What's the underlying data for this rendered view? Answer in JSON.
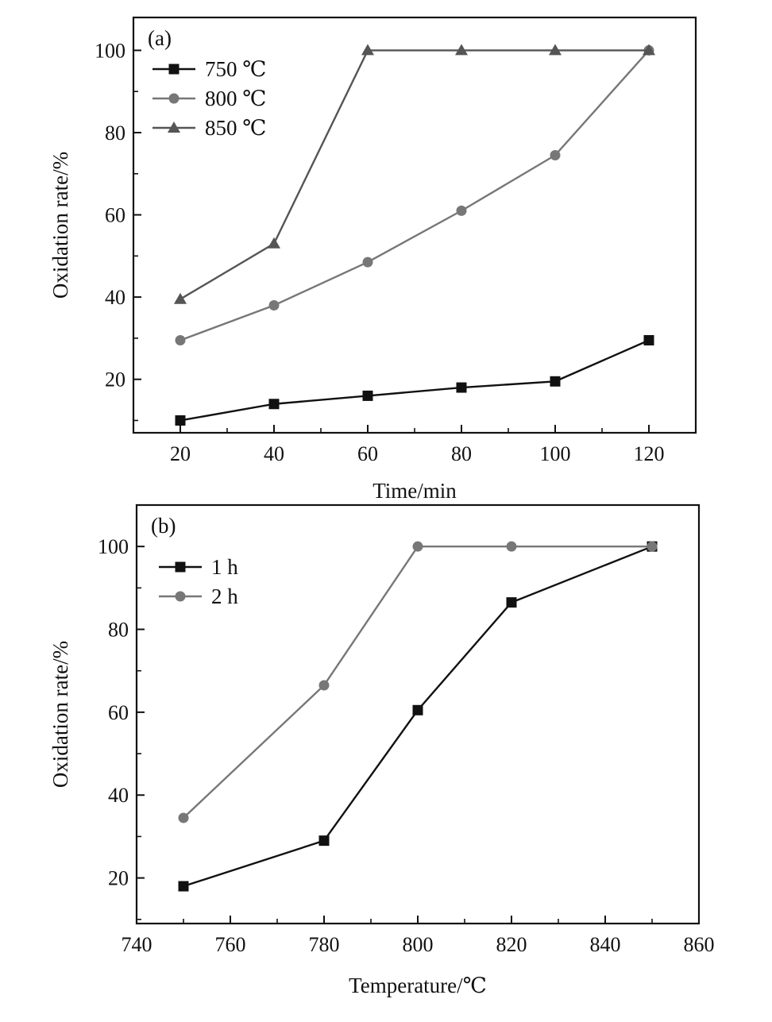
{
  "chart_data": [
    {
      "type": "line",
      "panel_label": "(a)",
      "xlabel": "Time/min",
      "ylabel": "Oxidation rate/%",
      "xlim": [
        10,
        130
      ],
      "ylim": [
        7,
        108
      ],
      "xticks": [
        20,
        40,
        60,
        80,
        100,
        120
      ],
      "yticks": [
        20,
        40,
        60,
        80,
        100
      ],
      "xminor": [
        30,
        50,
        70,
        90,
        110
      ],
      "yminor": [
        10,
        30,
        50,
        70,
        90
      ],
      "legend_position": "top-left",
      "series": [
        {
          "name": "750 ℃",
          "marker": "square",
          "color": "#111111",
          "x": [
            20,
            40,
            60,
            80,
            100,
            120
          ],
          "y": [
            10,
            14,
            16,
            18,
            19.5,
            29.5
          ]
        },
        {
          "name": "800 ℃",
          "marker": "circle",
          "color": "#777777",
          "x": [
            20,
            40,
            60,
            80,
            100,
            120
          ],
          "y": [
            29.5,
            38,
            48.5,
            61,
            74.5,
            100
          ]
        },
        {
          "name": "850 ℃",
          "marker": "triangle",
          "color": "#555555",
          "x": [
            20,
            40,
            60,
            80,
            100,
            120
          ],
          "y": [
            39.5,
            53,
            100,
            100,
            100,
            100
          ]
        }
      ]
    },
    {
      "type": "line",
      "panel_label": "(b)",
      "xlabel": "Temperature/℃",
      "ylabel": "Oxidation rate/%",
      "xlim": [
        740,
        860
      ],
      "ylim": [
        9,
        110
      ],
      "xticks": [
        740,
        760,
        780,
        800,
        820,
        840,
        860
      ],
      "yticks": [
        20,
        40,
        60,
        80,
        100
      ],
      "xminor": [
        750,
        770,
        790,
        810,
        830,
        850
      ],
      "yminor": [
        10,
        30,
        50,
        70,
        90
      ],
      "legend_position": "top-left",
      "series": [
        {
          "name": "1 h",
          "marker": "square",
          "color": "#111111",
          "x": [
            750,
            780,
            800,
            820,
            850
          ],
          "y": [
            18,
            29,
            60.5,
            86.5,
            100
          ]
        },
        {
          "name": "2 h",
          "marker": "circle",
          "color": "#777777",
          "x": [
            750,
            780,
            800,
            820,
            850
          ],
          "y": [
            34.5,
            66.5,
            100,
            100,
            100
          ]
        }
      ]
    }
  ]
}
